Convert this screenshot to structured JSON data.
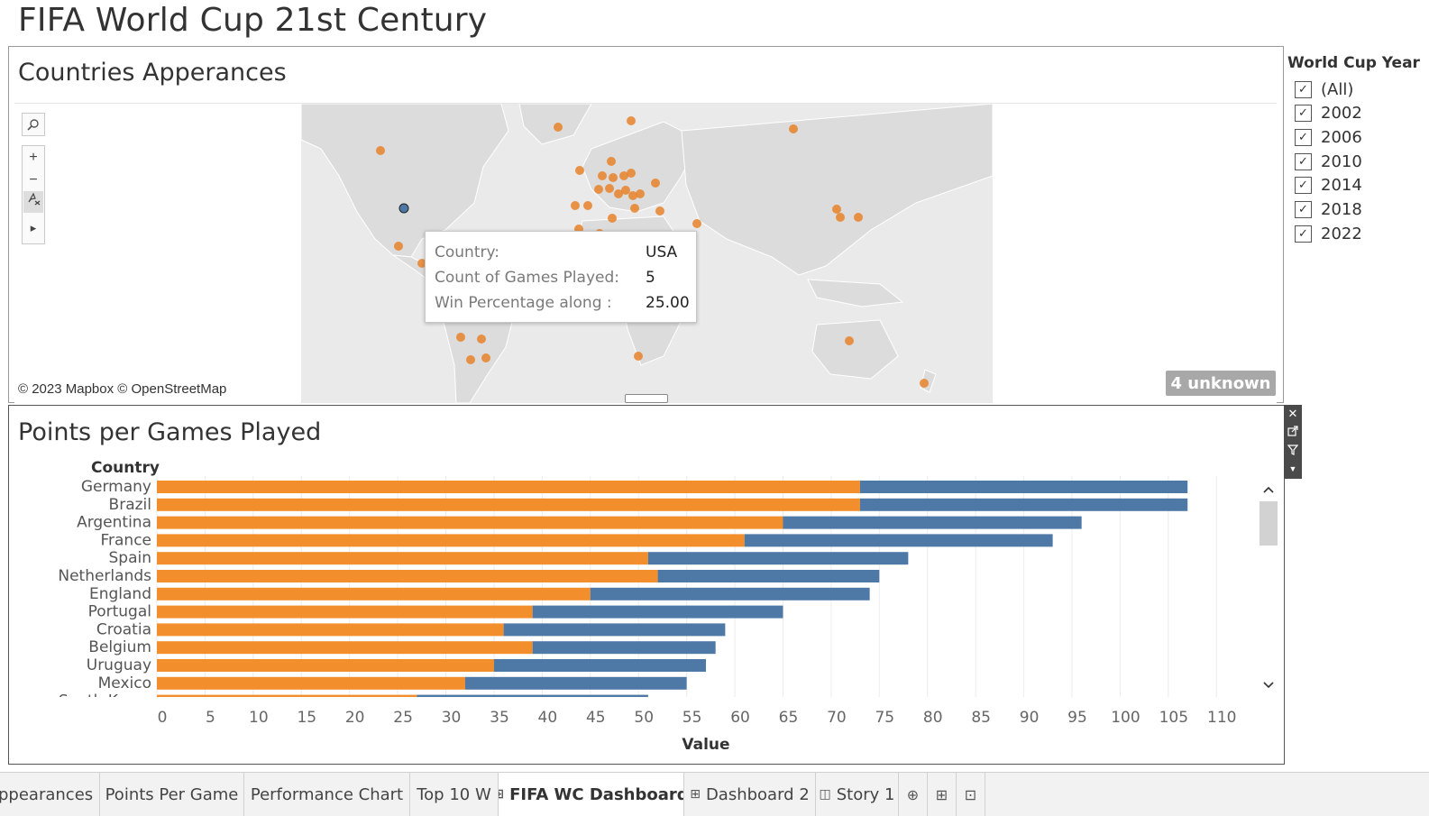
{
  "dashboard_title": "FIFA World Cup 21st Century",
  "map_zone": {
    "title": "Countries Apperances",
    "attribution": "© 2023 Mapbox © OpenStreetMap",
    "unknown_label": "4 unknown",
    "tools": {
      "search": "search-icon",
      "zoom_in": "+",
      "zoom_out": "−",
      "pan": "selection-tools-icon",
      "expand": "▸"
    },
    "tooltip": {
      "rows": [
        {
          "label": "Country:",
          "value": "USA"
        },
        {
          "label": "Count of Games Played:",
          "value": "5"
        },
        {
          "label": "Win Percentage along :",
          "value": "25.00"
        }
      ]
    },
    "marker_color": "#e8822a",
    "selected_marker_color": "#4e79a7"
  },
  "filter": {
    "title": "World Cup Year",
    "items": [
      {
        "label": "(All)",
        "checked": true
      },
      {
        "label": "2002",
        "checked": true
      },
      {
        "label": "2006",
        "checked": true
      },
      {
        "label": "2010",
        "checked": true
      },
      {
        "label": "2014",
        "checked": true
      },
      {
        "label": "2018",
        "checked": true
      },
      {
        "label": "2022",
        "checked": true
      }
    ]
  },
  "bar_zone": {
    "title": "Points per Games Played",
    "row_header": "Country",
    "toolbar": [
      "close-icon",
      "popout-icon",
      "filter-icon",
      "dropdown-icon"
    ]
  },
  "chart_data": {
    "type": "bar",
    "orientation": "horizontal",
    "stacked": true,
    "categories": [
      "Germany",
      "Brazil",
      "Argentina",
      "France",
      "Spain",
      "Netherlands",
      "England",
      "Portugal",
      "Croatia",
      "Belgium",
      "Uruguay",
      "Mexico",
      "South Korea"
    ],
    "series": [
      {
        "color": "#f28e2b",
        "values": [
          73,
          73,
          65,
          61,
          51,
          52,
          45,
          39,
          36,
          39,
          35,
          32,
          27
        ]
      },
      {
        "color": "#4e79a7",
        "values": [
          34,
          34,
          31,
          32,
          27,
          23,
          29,
          26,
          23,
          19,
          22,
          23,
          24
        ]
      }
    ],
    "xlabel": "Value",
    "xlim": [
      0,
      114
    ],
    "xticks": [
      0,
      5,
      10,
      15,
      20,
      25,
      30,
      35,
      40,
      45,
      50,
      55,
      60,
      65,
      70,
      75,
      80,
      85,
      90,
      95,
      100,
      105,
      110
    ],
    "grid": true
  },
  "tabs": [
    {
      "label": "ppearances",
      "icon": "",
      "active": false
    },
    {
      "label": "Points Per Game",
      "icon": "",
      "active": false
    },
    {
      "label": "Performance Chart",
      "icon": "",
      "active": false
    },
    {
      "label": "Top 10 W",
      "icon": "",
      "active": false
    },
    {
      "label": "FIFA WC Dashboard",
      "icon": "⊞",
      "active": true
    },
    {
      "label": "Dashboard 2",
      "icon": "⊞",
      "active": false
    },
    {
      "label": "Story 1",
      "icon": "◫",
      "active": false
    }
  ],
  "tab_actions": [
    "new-worksheet-icon",
    "new-dashboard-icon",
    "new-story-icon"
  ]
}
